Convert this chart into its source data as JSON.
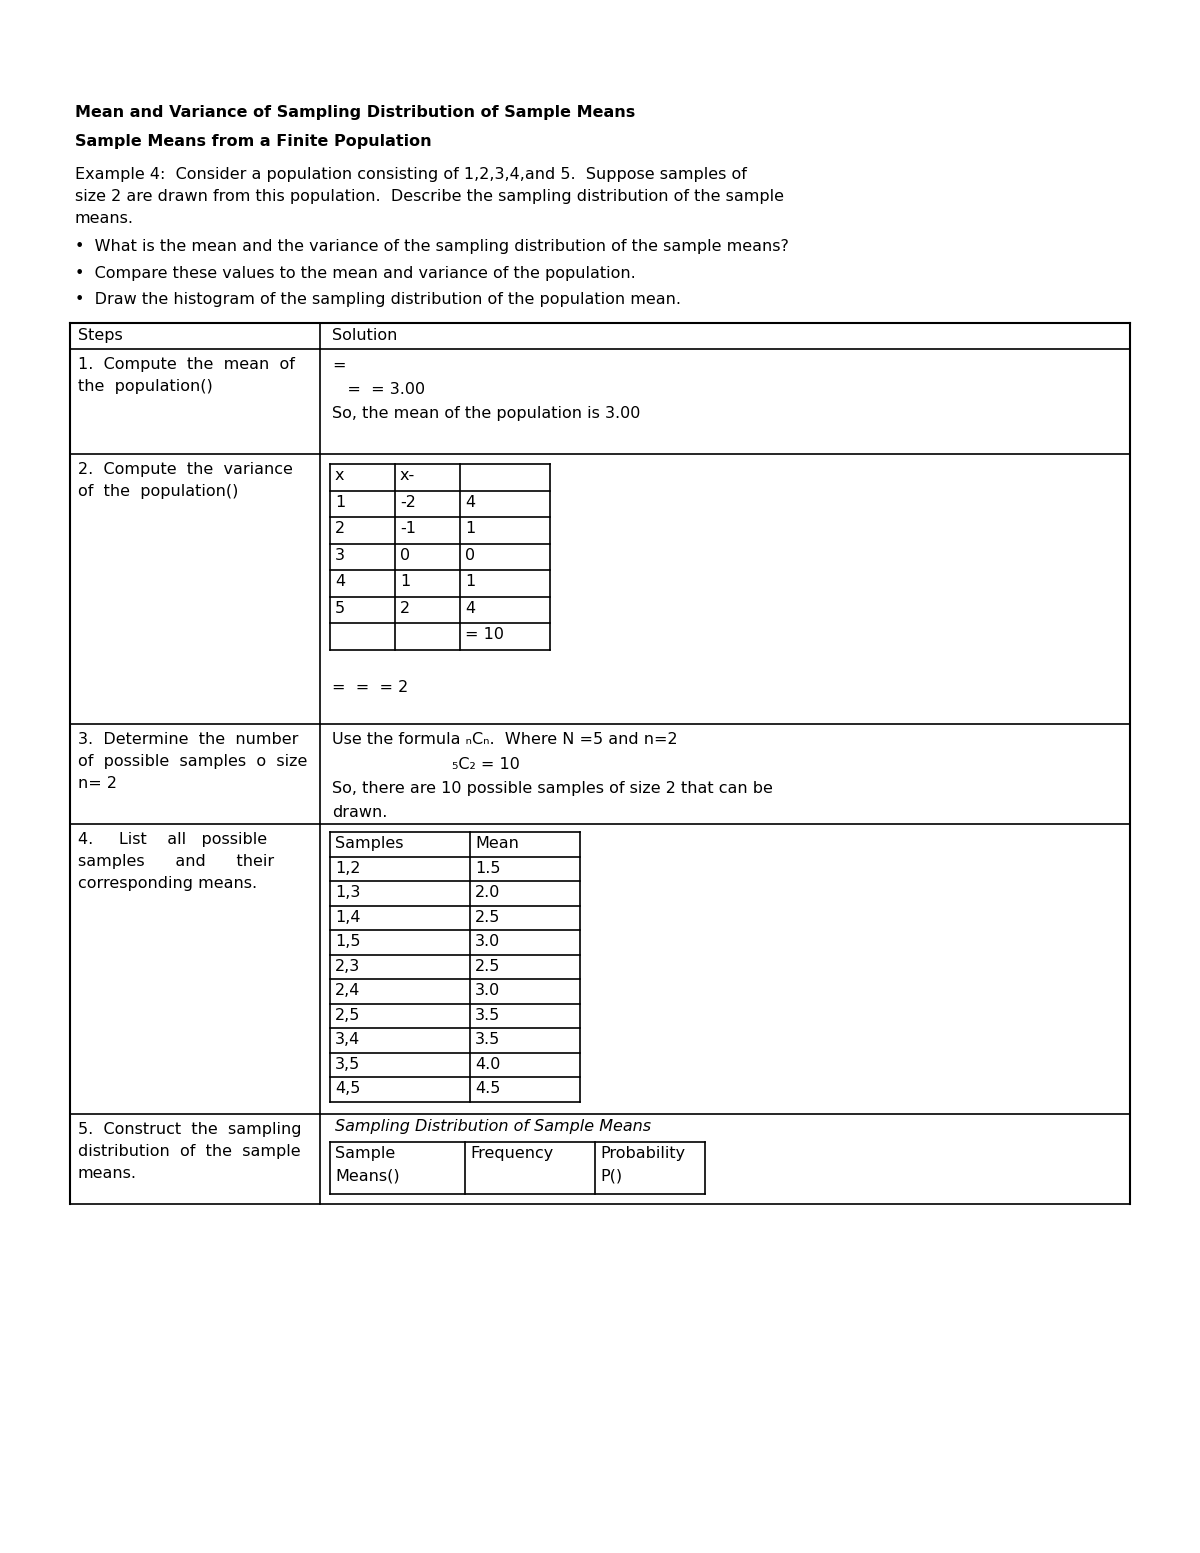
{
  "title1": "Mean and Variance of Sampling Distribution of Sample Means",
  "title2": "Sample Means from a Finite Population",
  "example_text_line1": "Example 4:  Consider a population consisting of 1,2,3,4,and 5.  Suppose samples of",
  "example_text_line2": "size 2 are drawn from this population.  Describe the sampling distribution of the sample",
  "example_text_line3": "means.",
  "bullets": [
    "What is the mean and the variance of the sampling distribution of the sample means?",
    "Compare these values to the mean and variance of the population.",
    "Draw the histogram of the sampling distribution of the population mean."
  ],
  "variance_table_data": [
    [
      "1",
      "-2",
      "4"
    ],
    [
      "2",
      "-1",
      "1"
    ],
    [
      "3",
      "0",
      "0"
    ],
    [
      "4",
      "1",
      "1"
    ],
    [
      "5",
      "2",
      "4"
    ],
    [
      "",
      "",
      "= 10"
    ]
  ],
  "samples_data": [
    [
      "1,2",
      "1.5"
    ],
    [
      "1,3",
      "2.0"
    ],
    [
      "1,4",
      "2.5"
    ],
    [
      "1,5",
      "3.0"
    ],
    [
      "2,3",
      "2.5"
    ],
    [
      "2,4",
      "3.0"
    ],
    [
      "2,5",
      "3.5"
    ],
    [
      "3,4",
      "3.5"
    ],
    [
      "3,5",
      "4.0"
    ],
    [
      "4,5",
      "4.5"
    ]
  ],
  "bg_color": "#ffffff",
  "text_color": "#000000"
}
